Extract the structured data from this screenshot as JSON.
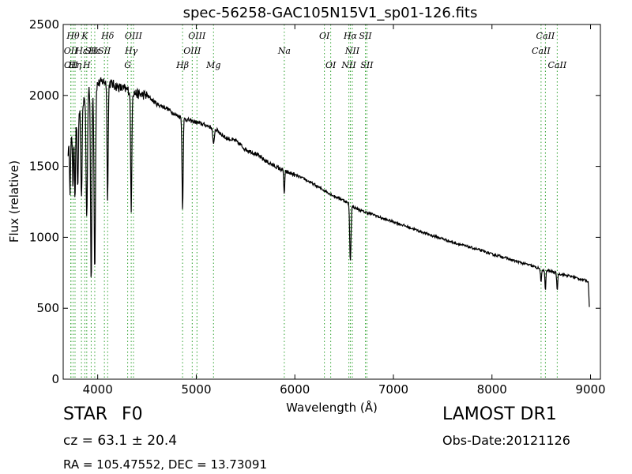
{
  "chart_data": {
    "type": "line",
    "title": "spec-56258-GAC105N15V1_sp01-126.fits",
    "xlabel": "Wavelength (Å)",
    "ylabel": "Flux (relative)",
    "xlim": [
      3650,
      9100
    ],
    "ylim": [
      0,
      2500
    ],
    "xticks": [
      4000,
      5000,
      6000,
      7000,
      8000,
      9000
    ],
    "yticks": [
      0,
      500,
      1000,
      1500,
      2000,
      2500
    ],
    "grid": false,
    "line_color": "#000000",
    "marker_color": "#2ca02c",
    "series": [
      {
        "continuum": [
          [
            3700,
            1600
          ],
          [
            3750,
            1720
          ],
          [
            3800,
            1880
          ],
          [
            3850,
            1950
          ],
          [
            3900,
            2050
          ],
          [
            3950,
            2060
          ],
          [
            4000,
            2080
          ],
          [
            4050,
            2100
          ],
          [
            4100,
            2090
          ],
          [
            4150,
            2080
          ],
          [
            4200,
            2060
          ],
          [
            4250,
            2050
          ],
          [
            4300,
            2040
          ],
          [
            4400,
            2010
          ],
          [
            4500,
            2000
          ],
          [
            4600,
            1940
          ],
          [
            4700,
            1910
          ],
          [
            4800,
            1860
          ],
          [
            4900,
            1830
          ],
          [
            5000,
            1810
          ],
          [
            5100,
            1790
          ],
          [
            5200,
            1760
          ],
          [
            5300,
            1700
          ],
          [
            5400,
            1680
          ],
          [
            5500,
            1620
          ],
          [
            5600,
            1590
          ],
          [
            5700,
            1540
          ],
          [
            5800,
            1500
          ],
          [
            5900,
            1465
          ],
          [
            6000,
            1440
          ],
          [
            6100,
            1410
          ],
          [
            6200,
            1370
          ],
          [
            6300,
            1330
          ],
          [
            6400,
            1290
          ],
          [
            6500,
            1260
          ],
          [
            6600,
            1210
          ],
          [
            6700,
            1180
          ],
          [
            6800,
            1160
          ],
          [
            6900,
            1130
          ],
          [
            7000,
            1110
          ],
          [
            7100,
            1085
          ],
          [
            7200,
            1060
          ],
          [
            7300,
            1035
          ],
          [
            7400,
            1010
          ],
          [
            7500,
            990
          ],
          [
            7600,
            965
          ],
          [
            7700,
            945
          ],
          [
            7800,
            925
          ],
          [
            7900,
            905
          ],
          [
            8000,
            880
          ],
          [
            8100,
            865
          ],
          [
            8200,
            840
          ],
          [
            8300,
            820
          ],
          [
            8400,
            800
          ],
          [
            8500,
            775
          ],
          [
            8600,
            760
          ],
          [
            8700,
            740
          ],
          [
            8800,
            725
          ],
          [
            8900,
            705
          ],
          [
            8980,
            690
          ]
        ],
        "absorption_lines": [
          {
            "center": 3720,
            "depth": 320,
            "width": 6
          },
          {
            "center": 3750,
            "depth": 380,
            "width": 6
          },
          {
            "center": 3770,
            "depth": 500,
            "width": 7
          },
          {
            "center": 3798,
            "depth": 560,
            "width": 8
          },
          {
            "center": 3835,
            "depth": 680,
            "width": 9
          },
          {
            "center": 3889,
            "depth": 900,
            "width": 10
          },
          {
            "center": 3934,
            "depth": 1380,
            "width": 9
          },
          {
            "center": 3970,
            "depth": 1280,
            "width": 10
          },
          {
            "center": 4101,
            "depth": 810,
            "width": 8
          },
          {
            "center": 4340,
            "depth": 860,
            "width": 8
          },
          {
            "center": 4861,
            "depth": 640,
            "width": 8
          },
          {
            "center": 5175,
            "depth": 120,
            "width": 10
          },
          {
            "center": 5893,
            "depth": 160,
            "width": 7
          },
          {
            "center": 6563,
            "depth": 400,
            "width": 9
          },
          {
            "center": 8498,
            "depth": 100,
            "width": 7
          },
          {
            "center": 8542,
            "depth": 140,
            "width": 7
          },
          {
            "center": 8662,
            "depth": 120,
            "width": 7
          },
          {
            "center": 8990,
            "depth": 190,
            "width": 8
          }
        ]
      }
    ],
    "line_markers": [
      {
        "x": 3727,
        "label": "OII",
        "row": 2
      },
      {
        "x": 3729,
        "label": "OII",
        "row": 3
      },
      {
        "x": 3750,
        "label": "Hθ",
        "row": 1
      },
      {
        "x": 3770,
        "label": "Hη",
        "row": 3
      },
      {
        "x": 3835,
        "label": "Hε",
        "row": 2
      },
      {
        "x": 3869,
        "label": "K",
        "row": 1
      },
      {
        "x": 3889,
        "label": "H",
        "row": 3
      },
      {
        "x": 3934,
        "label": "SII",
        "row": 2
      },
      {
        "x": 3970,
        "label": "Hε",
        "row": 2
      },
      {
        "x": 4068,
        "label": "SII",
        "row": 2
      },
      {
        "x": 4101,
        "label": "Hδ",
        "row": 1
      },
      {
        "x": 4304,
        "label": "G",
        "row": 3
      },
      {
        "x": 4340,
        "label": "Hγ",
        "row": 2
      },
      {
        "x": 4363,
        "label": "OIII",
        "row": 1
      },
      {
        "x": 4861,
        "label": "Hβ",
        "row": 3
      },
      {
        "x": 4959,
        "label": "OIII",
        "row": 2
      },
      {
        "x": 5007,
        "label": "OIII",
        "row": 1
      },
      {
        "x": 5175,
        "label": "Mg",
        "row": 3
      },
      {
        "x": 5893,
        "label": "Na",
        "row": 2
      },
      {
        "x": 6300,
        "label": "OI",
        "row": 1
      },
      {
        "x": 6364,
        "label": "OI",
        "row": 3
      },
      {
        "x": 6548,
        "label": "NII",
        "row": 3
      },
      {
        "x": 6563,
        "label": "Hα",
        "row": 1
      },
      {
        "x": 6583,
        "label": "NII",
        "row": 2
      },
      {
        "x": 6716,
        "label": "SII",
        "row": 1
      },
      {
        "x": 6731,
        "label": "SII",
        "row": 3
      },
      {
        "x": 8498,
        "label": "CaII",
        "row": 2
      },
      {
        "x": 8542,
        "label": "CaII",
        "row": 1
      },
      {
        "x": 8662,
        "label": "CaII",
        "row": 3
      }
    ]
  },
  "info": {
    "object_class": "STAR",
    "subclass": "F0",
    "survey": "LAMOST DR1",
    "redshift": "cz = 63.1  ± 20.4",
    "obs_date": "Obs-Date:20121126",
    "coords": "RA = 105.47552, DEC = 13.73091"
  }
}
